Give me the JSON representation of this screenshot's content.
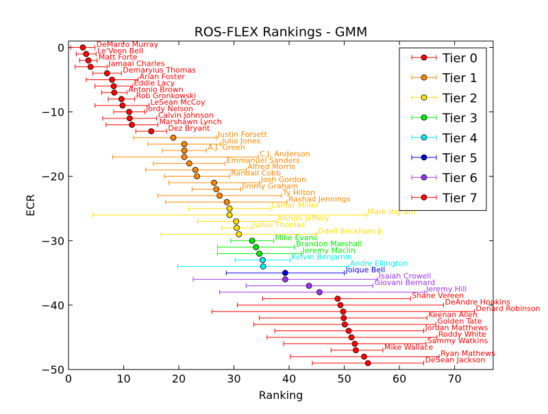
{
  "chart_data": {
    "type": "scatter",
    "title": "ROS-FLEX Rankings - GMM",
    "xlabel": "Ranking",
    "ylabel": "ECR",
    "xlim": [
      0,
      77
    ],
    "ylim": [
      -50,
      1
    ],
    "xticks": [
      0,
      10,
      20,
      30,
      40,
      50,
      60,
      70
    ],
    "yticks": [
      0,
      -10,
      -20,
      -30,
      -40,
      -50
    ],
    "xtick_labels": [
      "0",
      "10",
      "20",
      "30",
      "40",
      "50",
      "60",
      "70"
    ],
    "ytick_labels": [
      "0",
      "−10",
      "−20",
      "−30",
      "−40",
      "−50"
    ],
    "grid": false,
    "legend_position": "top-right",
    "error_bars": "horizontal",
    "series": [
      {
        "name": "Tier 0",
        "color": "#ff0000",
        "points": [
          {
            "label": "DeMarco Murray",
            "x": 2.6,
            "y": 0,
            "xmin": 0.4,
            "xmax": 4.8
          },
          {
            "label": "Le'Veon Bell",
            "x": 3.2,
            "y": -1,
            "xmin": 1.4,
            "xmax": 5.0
          },
          {
            "label": "Matt Forte",
            "x": 3.6,
            "y": -2,
            "xmin": 2.0,
            "xmax": 5.2
          },
          {
            "label": "Jamaal Charles",
            "x": 4.0,
            "y": -3,
            "xmin": 1.2,
            "xmax": 7.0
          },
          {
            "label": "Demaryius Thomas",
            "x": 7.0,
            "y": -4,
            "xmin": 4.4,
            "xmax": 9.6
          },
          {
            "label": "Arian Foster",
            "x": 7.9,
            "y": -5,
            "xmin": 3.2,
            "xmax": 12.6
          },
          {
            "label": "Eddie Lacy",
            "x": 8.2,
            "y": -6,
            "xmin": 4.8,
            "xmax": 11.6
          },
          {
            "label": "Antonio Brown",
            "x": 8.3,
            "y": -7,
            "xmin": 6.0,
            "xmax": 10.6
          },
          {
            "label": "Rob Gronkowski",
            "x": 9.6,
            "y": -8,
            "xmin": 7.2,
            "xmax": 12.0
          },
          {
            "label": "LeSean McCoy",
            "x": 9.8,
            "y": -9,
            "xmin": 4.8,
            "xmax": 14.6
          },
          {
            "label": "Jordy Nelson",
            "x": 11.0,
            "y": -10,
            "xmin": 8.2,
            "xmax": 13.8
          },
          {
            "label": "Calvin Johnson",
            "x": 11.1,
            "y": -11,
            "xmin": 6.2,
            "xmax": 16.0
          },
          {
            "label": "Marshawn Lynch",
            "x": 11.5,
            "y": -12,
            "xmin": 6.8,
            "xmax": 16.2
          },
          {
            "label": "Dez Bryant",
            "x": 15.0,
            "y": -13,
            "xmin": 12.2,
            "xmax": 17.8
          }
        ]
      },
      {
        "name": "Tier 1",
        "color": "#ff8800",
        "points": [
          {
            "label": "Justin Forsett",
            "x": 19.0,
            "y": -14,
            "xmin": 11.8,
            "xmax": 26.8
          },
          {
            "label": "Julio Jones",
            "x": 21.0,
            "y": -15,
            "xmin": 14.4,
            "xmax": 27.6
          },
          {
            "label": "A.J. Green",
            "x": 21.0,
            "y": -16,
            "xmin": 17.0,
            "xmax": 25.0
          },
          {
            "label": "C.J. Anderson",
            "x": 21.0,
            "y": -17,
            "xmin": 8.0,
            "xmax": 34.4
          },
          {
            "label": "Emmanuel Sanders",
            "x": 21.9,
            "y": -18,
            "xmin": 15.4,
            "xmax": 28.4
          },
          {
            "label": "Alfred Morris",
            "x": 23.0,
            "y": -19,
            "xmin": 14.0,
            "xmax": 32.2
          },
          {
            "label": "Randall Cobb",
            "x": 23.3,
            "y": -20,
            "xmin": 17.4,
            "xmax": 29.2
          },
          {
            "label": "Josh Gordon",
            "x": 26.4,
            "y": -21,
            "xmin": 18.2,
            "xmax": 34.6
          },
          {
            "label": "Jimmy Graham",
            "x": 26.8,
            "y": -22,
            "xmin": 22.4,
            "xmax": 31.2
          },
          {
            "label": "Ty Hilton",
            "x": 27.4,
            "y": -23,
            "xmin": 16.2,
            "xmax": 38.6
          },
          {
            "label": "Rashad Jennings",
            "x": 28.7,
            "y": -24,
            "xmin": 17.6,
            "xmax": 39.6
          }
        ]
      },
      {
        "name": "Tier 2",
        "color": "#ffdd00",
        "points": [
          {
            "label": "Lamar Miller",
            "x": 29.2,
            "y": -25,
            "xmin": 21.8,
            "xmax": 36.6
          },
          {
            "label": "Mark Ingram",
            "x": 29.2,
            "y": -26,
            "xmin": 4.4,
            "xmax": 54.0
          },
          {
            "label": "Alshon Jeffery",
            "x": 30.4,
            "y": -27,
            "xmin": 23.4,
            "xmax": 37.6
          },
          {
            "label": "Julius Thomas",
            "x": 30.5,
            "y": -28,
            "xmin": 27.8,
            "xmax": 33.2
          },
          {
            "label": "Odell Beckham Jr.",
            "x": 30.9,
            "y": -29,
            "xmin": 16.8,
            "xmax": 45.0
          }
        ]
      },
      {
        "name": "Tier 3",
        "color": "#00ee00",
        "points": [
          {
            "label": "Mike Evans",
            "x": 33.3,
            "y": -30,
            "xmin": 29.4,
            "xmax": 37.2
          },
          {
            "label": "Brandon Marshall",
            "x": 34.0,
            "y": -31,
            "xmin": 27.0,
            "xmax": 41.0
          },
          {
            "label": "Jeremy Maclin",
            "x": 34.6,
            "y": -32,
            "xmin": 27.0,
            "xmax": 42.2
          }
        ]
      },
      {
        "name": "Tier 4",
        "color": "#00eeee",
        "points": [
          {
            "label": "Kelvin Benjamin",
            "x": 35.2,
            "y": -33,
            "xmin": 30.2,
            "xmax": 40.2
          },
          {
            "label": "Andre Ellington",
            "x": 35.3,
            "y": -34,
            "xmin": 19.8,
            "xmax": 50.8
          }
        ]
      },
      {
        "name": "Tier 5",
        "color": "#0000dd",
        "points": [
          {
            "label": "Joique Bell",
            "x": 39.3,
            "y": -35,
            "xmin": 28.6,
            "xmax": 50.0
          }
        ]
      },
      {
        "name": "Tier 6",
        "color": "#9933ee",
        "points": [
          {
            "label": "Isaiah Crowell",
            "x": 39.3,
            "y": -36,
            "xmin": 22.6,
            "xmax": 56.0
          },
          {
            "label": "Giovani Bernard",
            "x": 43.6,
            "y": -37,
            "xmin": 32.2,
            "xmax": 55.2
          },
          {
            "label": "Jeremy Hill",
            "x": 45.5,
            "y": -38,
            "xmin": 27.4,
            "xmax": 64.6
          }
        ]
      },
      {
        "name": "Tier 7",
        "color": "#ff0000",
        "points": [
          {
            "label": "Shane Vereen",
            "x": 48.8,
            "y": -39,
            "xmin": 35.2,
            "xmax": 62.0
          },
          {
            "label": "DeAndre Hopkins",
            "x": 49.3,
            "y": -40,
            "xmin": 30.6,
            "xmax": 68.0
          },
          {
            "label": "Denard Robinson",
            "x": 49.8,
            "y": -41,
            "xmin": 26.0,
            "xmax": 73.6
          },
          {
            "label": "Keenan Allen",
            "x": 49.9,
            "y": -42,
            "xmin": 34.6,
            "xmax": 65.0
          },
          {
            "label": "Golden Tate",
            "x": 50.1,
            "y": -43,
            "xmin": 33.6,
            "xmax": 66.6
          },
          {
            "label": "Jordan Matthews",
            "x": 50.8,
            "y": -44,
            "xmin": 37.4,
            "xmax": 64.4
          },
          {
            "label": "Roddy White",
            "x": 51.3,
            "y": -45,
            "xmin": 36.0,
            "xmax": 66.8
          },
          {
            "label": "Sammy Watkins",
            "x": 51.9,
            "y": -46,
            "xmin": 39.0,
            "xmax": 64.8
          },
          {
            "label": "Mike Wallace",
            "x": 52.1,
            "y": -47,
            "xmin": 47.6,
            "xmax": 57.0
          },
          {
            "label": "Ryan Mathews",
            "x": 53.6,
            "y": -48,
            "xmin": 40.2,
            "xmax": 67.2
          },
          {
            "label": "DeSean Jackson",
            "x": 54.3,
            "y": -49,
            "xmin": 44.2,
            "xmax": 64.4
          }
        ]
      }
    ]
  }
}
